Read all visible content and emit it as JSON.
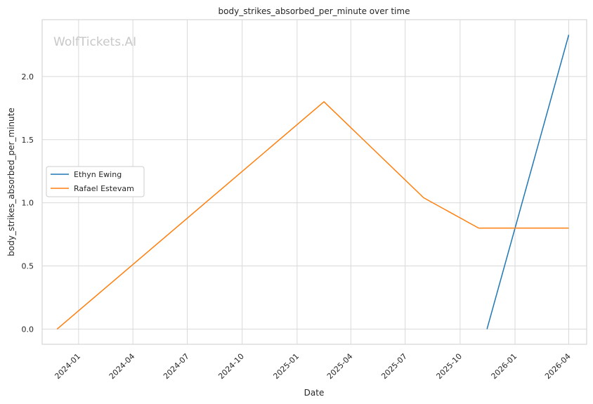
{
  "watermark": "WolfTickets.AI",
  "chart_data": {
    "type": "line",
    "title": "body_strikes_absorbed_per_minute over time",
    "xlabel": "Date",
    "ylabel": "body_strikes_absorbed_per_minute",
    "xlim": [
      "2023-11-01",
      "2026-05-01"
    ],
    "ylim": [
      -0.12,
      2.45
    ],
    "x_ticks": [
      "2024-01",
      "2024-04",
      "2024-07",
      "2024-10",
      "2025-01",
      "2025-04",
      "2025-07",
      "2025-10",
      "2026-01",
      "2026-04"
    ],
    "y_ticks": [
      "0.0",
      "0.5",
      "1.0",
      "1.5",
      "2.0"
    ],
    "y_tick_values": [
      0,
      0.5,
      1.0,
      1.5,
      2.0
    ],
    "grid": true,
    "legend_position": "center-left",
    "series": [
      {
        "name": "Ethyn Ewing",
        "color": "#1f77b4",
        "points": [
          {
            "x": "2025-11-15",
            "y": 0.0
          },
          {
            "x": "2026-04-01",
            "y": 2.33
          }
        ]
      },
      {
        "name": "Rafael Estevam",
        "color": "#ff7f0e",
        "points": [
          {
            "x": "2023-11-26",
            "y": 0.0
          },
          {
            "x": "2025-02-15",
            "y": 1.8
          },
          {
            "x": "2025-08-01",
            "y": 1.04
          },
          {
            "x": "2025-11-01",
            "y": 0.8
          },
          {
            "x": "2026-04-01",
            "y": 0.8
          }
        ]
      }
    ]
  }
}
